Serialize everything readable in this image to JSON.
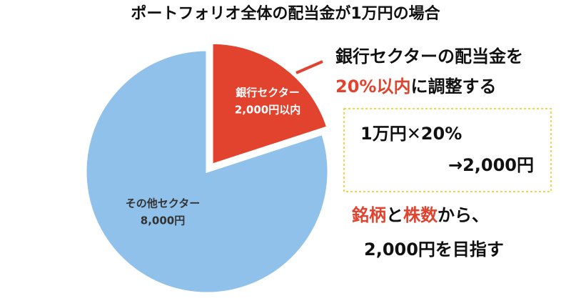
{
  "chart_data": {
    "type": "pie",
    "title": "ポートフォリオ全体の配当金が1万円の場合",
    "categories": [
      "銀行セクター",
      "その他セクター"
    ],
    "values": [
      2000,
      8000
    ],
    "value_labels": [
      "2,000円以内",
      "8,000円"
    ],
    "colors": [
      "#e2432f",
      "#90c1ea"
    ],
    "annotations": [
      [
        {
          "text": "銀行セクターの配当金を",
          "color": "#111111"
        }
      ],
      [
        {
          "text": "20%以内",
          "color": "#e2432f"
        },
        {
          "text": "に調整する",
          "color": "#111111"
        }
      ],
      [
        {
          "text": "1万円✕20%",
          "color": "#111111"
        }
      ],
      [
        {
          "text": "→2,000円",
          "color": "#111111"
        }
      ],
      [
        {
          "text": "銘柄",
          "color": "#e2432f"
        },
        {
          "text": "と",
          "color": "#111111"
        },
        {
          "text": "株数",
          "color": "#e2432f"
        },
        {
          "text": "から、",
          "color": "#111111"
        }
      ],
      [
        {
          "text": "2,000円を目指す",
          "color": "#111111"
        }
      ]
    ]
  }
}
